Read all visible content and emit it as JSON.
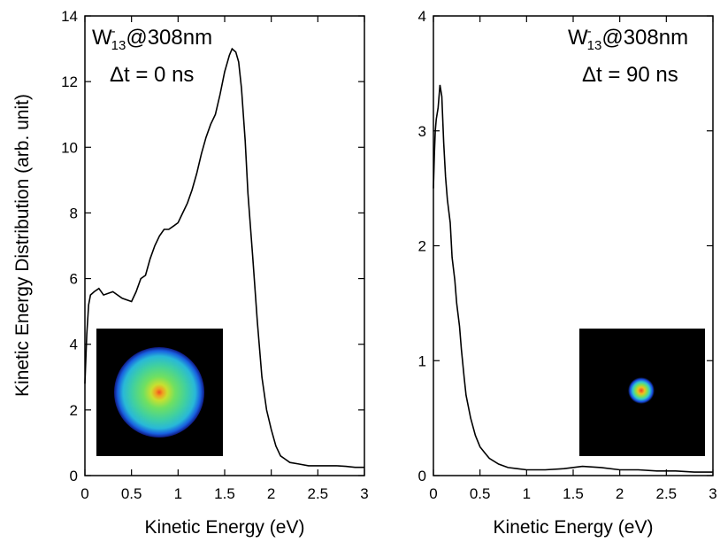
{
  "figure": {
    "ylabel": "Kinetic Energy Distribution (arb. unit)"
  },
  "chart_data": [
    {
      "type": "line",
      "xlabel": "Kinetic Energy (eV)",
      "ylabel": "Kinetic Energy Distribution (arb. unit)",
      "xlim": [
        0,
        3
      ],
      "ylim": [
        0,
        14
      ],
      "x_ticks": [
        "0",
        "0.5",
        "1",
        "1.5",
        "2",
        "2.5",
        "3"
      ],
      "y_ticks": [
        "0",
        "2",
        "4",
        "6",
        "8",
        "10",
        "12",
        "14"
      ],
      "annotation": {
        "species_base": "W",
        "species_sup": "-",
        "species_sub": "13",
        "wavelength": "@308nm",
        "delay": "Δt = 0 ns"
      },
      "inset": {
        "description_icon": "velocity-map-image-inset",
        "ring": "broad",
        "colors": [
          "#000000",
          "#1838d8",
          "#20c8d8",
          "#60e060",
          "#f0e020",
          "#f06020"
        ]
      },
      "series": [
        {
          "x": [
            0.0,
            0.02,
            0.04,
            0.06,
            0.1,
            0.15,
            0.2,
            0.3,
            0.4,
            0.5,
            0.55,
            0.6,
            0.65,
            0.7,
            0.75,
            0.8,
            0.85,
            0.9,
            0.95,
            1.0,
            1.05,
            1.1,
            1.15,
            1.2,
            1.25,
            1.3,
            1.35,
            1.4,
            1.45,
            1.5,
            1.55,
            1.58,
            1.62,
            1.65,
            1.68,
            1.72,
            1.75,
            1.8,
            1.85,
            1.9,
            1.95,
            2.0,
            2.05,
            2.1,
            2.15,
            2.2,
            2.3,
            2.4,
            2.5,
            2.6,
            2.7,
            2.8,
            2.9,
            3.0
          ],
          "y": [
            2.8,
            4.3,
            5.2,
            5.5,
            5.6,
            5.7,
            5.5,
            5.6,
            5.4,
            5.3,
            5.6,
            6.0,
            6.1,
            6.6,
            7.0,
            7.3,
            7.5,
            7.5,
            7.6,
            7.7,
            8.0,
            8.3,
            8.7,
            9.2,
            9.8,
            10.3,
            10.7,
            11.0,
            11.6,
            12.3,
            12.8,
            13.0,
            12.9,
            12.6,
            11.8,
            10.2,
            8.6,
            6.7,
            4.7,
            3.0,
            2.0,
            1.4,
            0.9,
            0.6,
            0.5,
            0.4,
            0.35,
            0.3,
            0.3,
            0.3,
            0.3,
            0.28,
            0.25,
            0.25
          ]
        }
      ]
    },
    {
      "type": "line",
      "xlabel": "Kinetic Energy (eV)",
      "ylabel": "",
      "xlim": [
        0,
        3
      ],
      "ylim": [
        0,
        4
      ],
      "x_ticks": [
        "0",
        "0.5",
        "1",
        "1.5",
        "2",
        "2.5",
        "3"
      ],
      "y_ticks": [
        "0",
        "1",
        "2",
        "3",
        "4"
      ],
      "annotation": {
        "species_base": "W",
        "species_sup": "-",
        "species_sub": "13",
        "wavelength": "@308nm",
        "delay": "Δt = 90 ns"
      },
      "inset": {
        "description_icon": "velocity-map-image-inset",
        "ring": "small",
        "colors": [
          "#000000",
          "#1838d8",
          "#20c8d8",
          "#60e060",
          "#f0e020",
          "#f06020"
        ]
      },
      "series": [
        {
          "x": [
            0.0,
            0.01,
            0.02,
            0.03,
            0.05,
            0.07,
            0.09,
            0.11,
            0.13,
            0.15,
            0.18,
            0.2,
            0.23,
            0.25,
            0.28,
            0.3,
            0.33,
            0.35,
            0.4,
            0.45,
            0.5,
            0.55,
            0.6,
            0.7,
            0.8,
            0.9,
            1.0,
            1.2,
            1.4,
            1.6,
            1.8,
            2.0,
            2.2,
            2.4,
            2.6,
            2.8,
            3.0
          ],
          "y": [
            2.5,
            2.8,
            3.0,
            3.1,
            3.2,
            3.4,
            3.3,
            2.9,
            2.6,
            2.4,
            2.2,
            1.9,
            1.7,
            1.5,
            1.3,
            1.1,
            0.85,
            0.7,
            0.5,
            0.35,
            0.25,
            0.2,
            0.15,
            0.1,
            0.07,
            0.06,
            0.05,
            0.05,
            0.06,
            0.08,
            0.07,
            0.05,
            0.05,
            0.04,
            0.04,
            0.03,
            0.03
          ]
        }
      ]
    }
  ]
}
